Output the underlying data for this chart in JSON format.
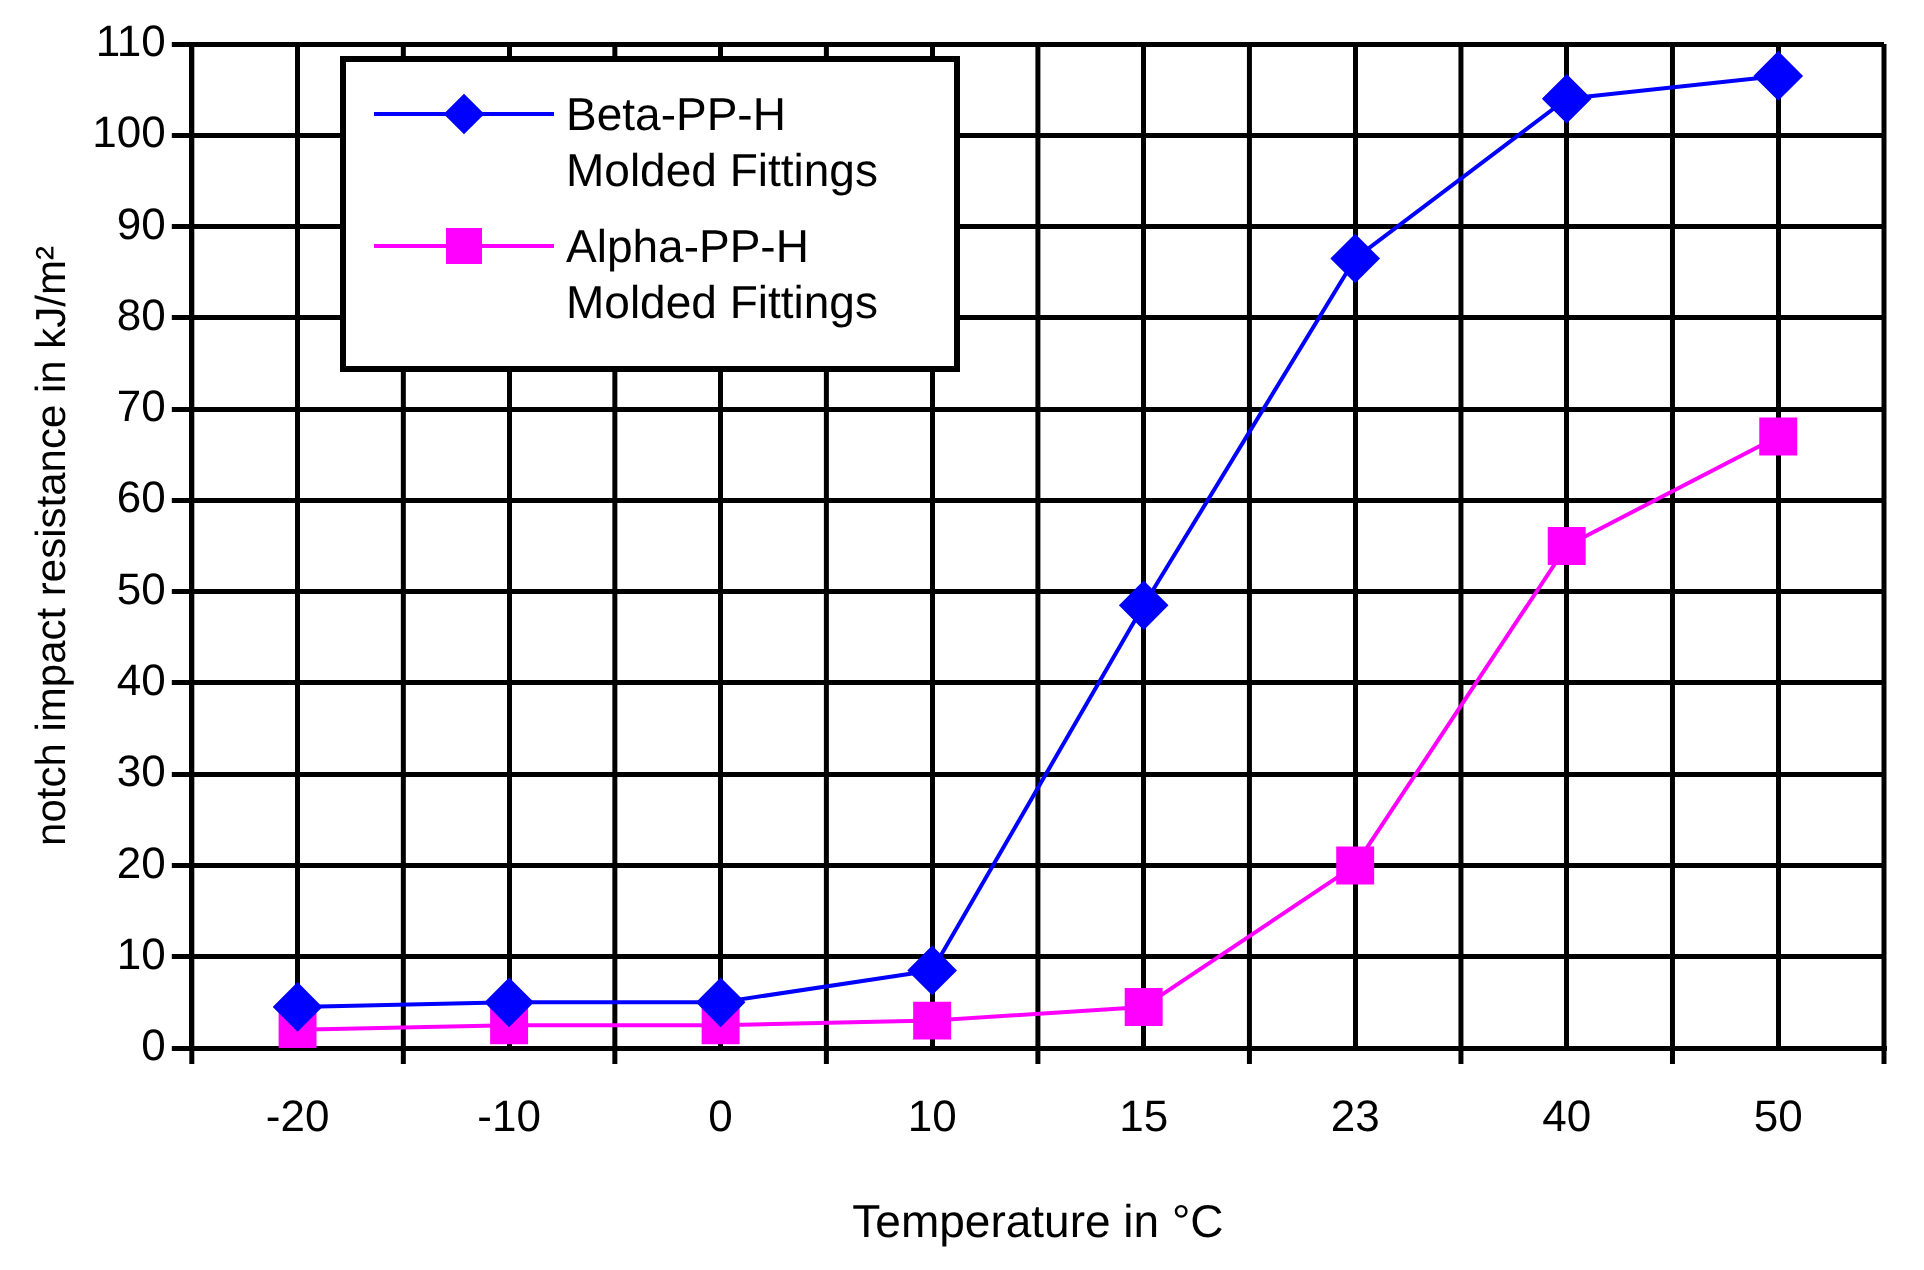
{
  "chart_data": {
    "type": "line",
    "xlabel": "Temperature in °C",
    "ylabel": "notch impact resistance in kJ/m²",
    "categories": [
      "-20",
      "-10",
      "0",
      "10",
      "15",
      "23",
      "40",
      "50"
    ],
    "series": [
      {
        "name": "Beta-PP-H Molded Fittings",
        "color": "#0000ff",
        "marker": "diamond",
        "values": [
          4.5,
          5,
          5,
          8.5,
          48.5,
          86.5,
          104,
          106.5
        ]
      },
      {
        "name": "Alpha-PP-H Molded Fittings",
        "color": "#ff00ff",
        "marker": "square",
        "values": [
          2,
          2.5,
          2.5,
          3,
          4.5,
          20,
          55,
          67
        ]
      }
    ],
    "ylim": [
      0,
      110
    ],
    "yticks": [
      0,
      10,
      20,
      30,
      40,
      50,
      60,
      70,
      80,
      90,
      100,
      110
    ],
    "grid": true,
    "legend": "top left",
    "line_style": "solid"
  }
}
